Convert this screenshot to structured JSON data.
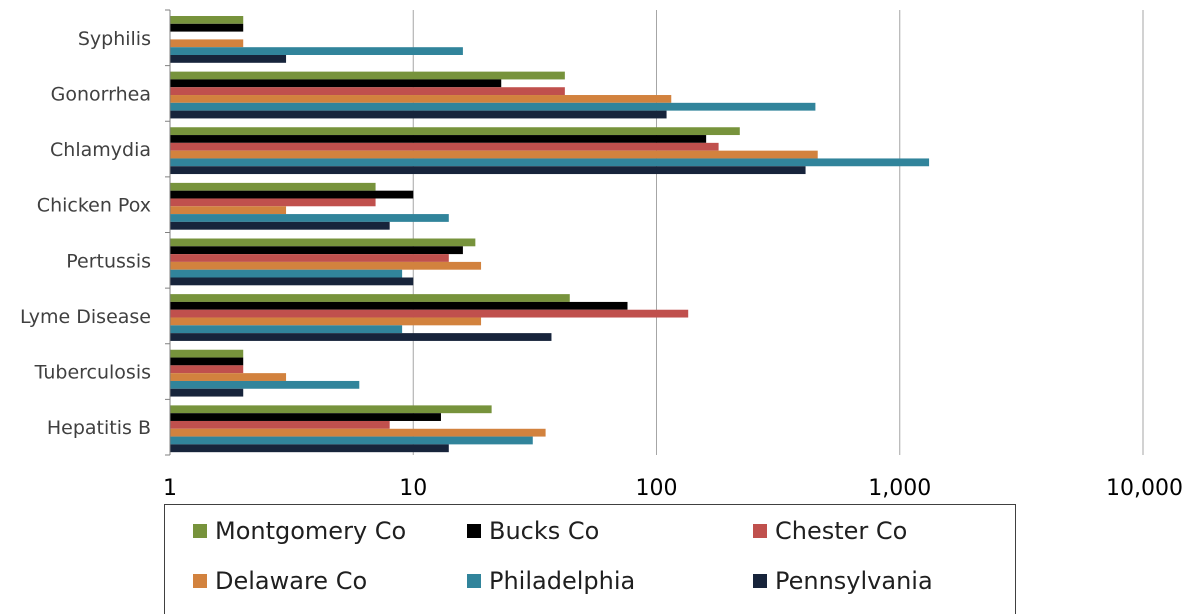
{
  "chart_data": {
    "type": "bar",
    "orientation": "horizontal",
    "x_scale": "log",
    "xlim": [
      1,
      10000
    ],
    "x_ticks": [
      "1",
      "10",
      "100",
      "1,000",
      "10,000"
    ],
    "x_tick_values": [
      1,
      10,
      100,
      1000,
      10000
    ],
    "grid": true,
    "legend_position": "bottom",
    "categories": [
      "Syphilis",
      "Gonorrhea",
      "Chlamydia",
      "Chicken Pox",
      "Pertussis",
      "Lyme Disease",
      "Tuberculosis",
      "Hepatitis B"
    ],
    "series": [
      {
        "name": "Montgomery Co",
        "color": "#77933C",
        "values": [
          2,
          42,
          220,
          7,
          18,
          44,
          2,
          21
        ]
      },
      {
        "name": "Bucks Co",
        "color": "#000000",
        "values": [
          2,
          23,
          160,
          10,
          16,
          76,
          2,
          13
        ]
      },
      {
        "name": "Chester Co",
        "color": "#C0504D",
        "values": [
          1,
          42,
          180,
          7,
          14,
          135,
          2,
          8
        ]
      },
      {
        "name": "Delaware Co",
        "color": "#D2823E",
        "values": [
          2,
          115,
          460,
          3,
          19,
          19,
          3,
          35
        ]
      },
      {
        "name": "Philadelphia",
        "color": "#31849B",
        "values": [
          16,
          450,
          1320,
          14,
          9,
          9,
          6,
          31
        ]
      },
      {
        "name": "Pennsylvania",
        "color": "#17243B",
        "values": [
          3,
          110,
          410,
          8,
          10,
          37,
          2,
          14
        ]
      }
    ]
  }
}
